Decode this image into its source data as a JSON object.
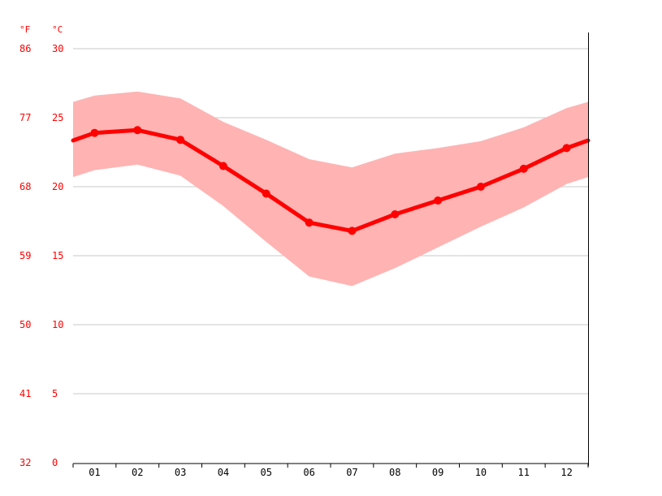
{
  "chart_data": {
    "type": "line",
    "title": "",
    "xlabel": "",
    "ylabel": "",
    "categories": [
      "01",
      "02",
      "03",
      "04",
      "05",
      "06",
      "07",
      "08",
      "09",
      "10",
      "11",
      "12"
    ],
    "series": [
      {
        "name": "",
        "role": "mean",
        "values": [
          23.9,
          24.1,
          23.4,
          21.5,
          19.5,
          17.4,
          16.8,
          18.0,
          19.0,
          20.0,
          21.3,
          22.8
        ]
      },
      {
        "name": "",
        "role": "max",
        "values": [
          26.6,
          26.9,
          26.4,
          24.7,
          23.4,
          22.0,
          21.4,
          22.4,
          22.8,
          23.3,
          24.3,
          25.7
        ]
      },
      {
        "name": "",
        "role": "min",
        "values": [
          21.2,
          21.6,
          20.8,
          18.6,
          16.0,
          13.5,
          12.8,
          14.1,
          15.6,
          17.1,
          18.5,
          20.2
        ]
      }
    ],
    "y_left_unit": "°F",
    "y_right_unit": "°C",
    "yticks_c": [
      "30",
      "25",
      "20",
      "15",
      "10",
      "5",
      "0"
    ],
    "yticks_f": [
      "86",
      "77",
      "68",
      "59",
      "50",
      "41",
      "32"
    ],
    "ylim": [
      0,
      30
    ],
    "grid": true,
    "colors": {
      "line": "#ff0000",
      "band": "#ffb3b3",
      "text": "#ff0000",
      "grid": "#c8c8c8",
      "axis": "#000000",
      "xlabel": "#000000"
    }
  }
}
